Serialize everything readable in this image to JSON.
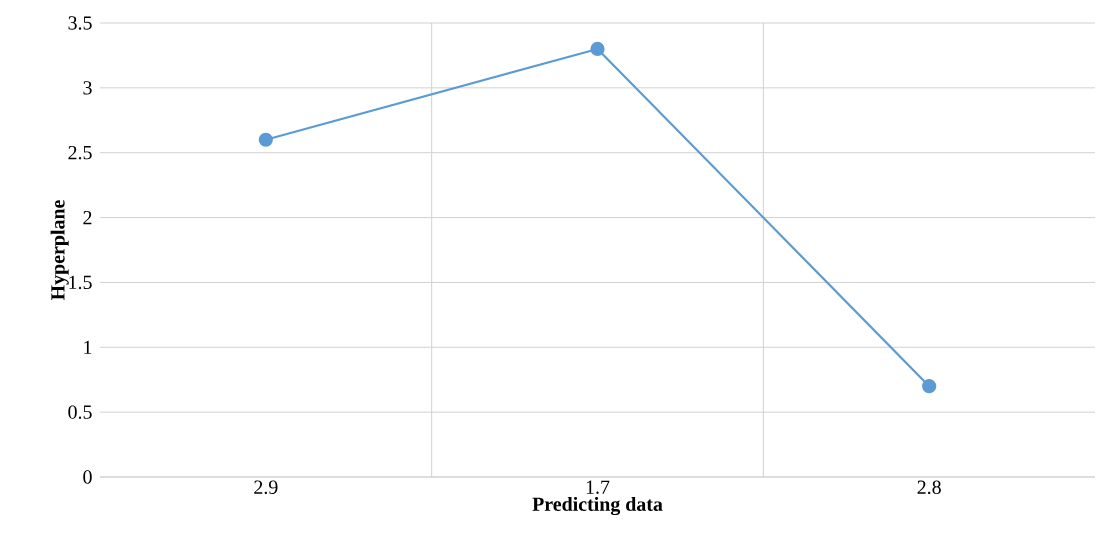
{
  "chart_data": {
    "type": "line",
    "xlabel": "Predicting data",
    "ylabel": "Hyperplane",
    "categories": [
      "2.9",
      "1.7",
      "2.8"
    ],
    "series": [
      {
        "color": "#5b9bd5",
        "values": [
          2.6,
          3.3,
          0.7
        ]
      }
    ],
    "ylim": [
      0,
      3.5
    ],
    "yticks": [
      0,
      0.5,
      1,
      1.5,
      2,
      2.5,
      3,
      3.5
    ],
    "grid": true,
    "marker": "circle",
    "line_style": "solid"
  }
}
